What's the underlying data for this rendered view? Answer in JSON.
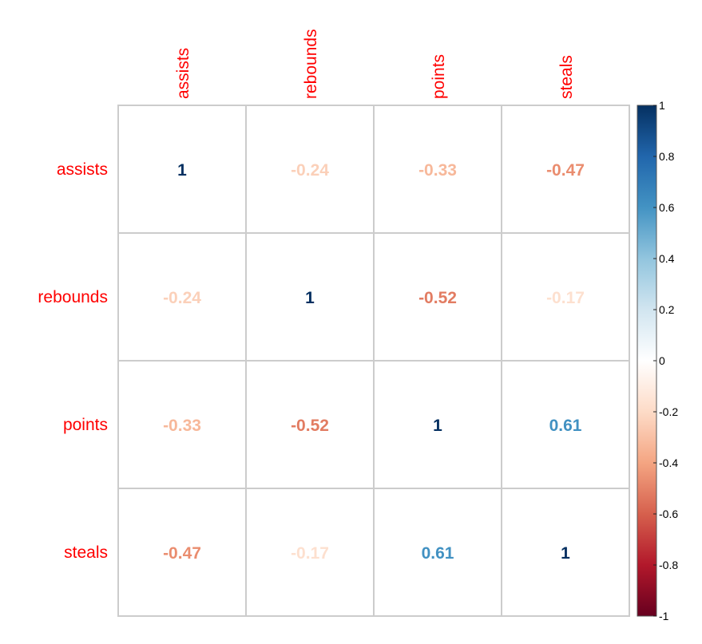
{
  "chart_data": {
    "type": "heatmap",
    "variables": [
      "assists",
      "rebounds",
      "points",
      "steals"
    ],
    "matrix": [
      [
        1,
        -0.24,
        -0.33,
        -0.47
      ],
      [
        -0.24,
        1,
        -0.52,
        -0.17
      ],
      [
        -0.33,
        -0.52,
        1,
        0.61
      ],
      [
        -0.47,
        -0.17,
        0.61,
        1
      ]
    ],
    "cell_labels": [
      [
        "1",
        "-0.24",
        "-0.33",
        "-0.47"
      ],
      [
        "-0.24",
        "1",
        "-0.52",
        "-0.17"
      ],
      [
        "-0.33",
        "-0.52",
        "1",
        "0.61"
      ],
      [
        "-0.47",
        "-0.17",
        "0.61",
        "1"
      ]
    ],
    "colorbar": {
      "range": [
        -1,
        1
      ],
      "ticks": [
        1,
        0.8,
        0.6,
        0.4,
        0.2,
        0,
        -0.2,
        -0.4,
        -0.6,
        -0.8,
        -1
      ],
      "tick_labels": [
        "1",
        "0.8",
        "0.6",
        "0.4",
        "0.2",
        "0",
        "-0.2",
        "-0.4",
        "-0.6",
        "-0.8",
        "-1"
      ],
      "palette": [
        "#67001F",
        "#B2182B",
        "#D6604D",
        "#F4A582",
        "#FDDBC7",
        "#FFFFFF",
        "#D1E5F0",
        "#92C5DE",
        "#4393C3",
        "#2166AC",
        "#053061"
      ]
    },
    "label_color": "#FF0000",
    "grid": true,
    "legend_placement": "right"
  }
}
